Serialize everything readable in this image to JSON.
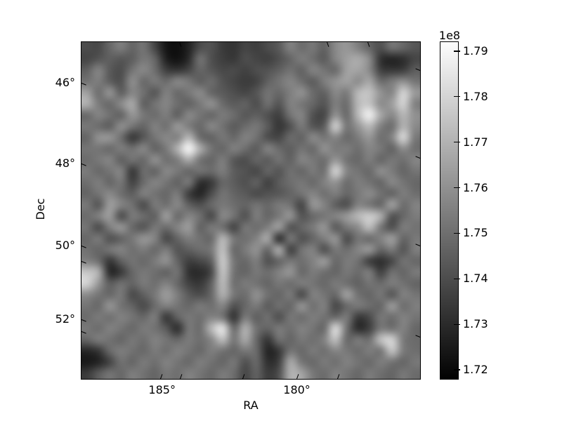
{
  "figure": {
    "background_color": "#ffffff",
    "frame_color": "#000000"
  },
  "chart_data": {
    "type": "heatmap",
    "title": "",
    "xlabel": "RA",
    "ylabel": "Dec",
    "colormap": "gray",
    "grid_on": false,
    "x_axis": {
      "name": "RA",
      "unit": "deg",
      "range": [
        188.0,
        175.5
      ],
      "tick_values": [
        185,
        180
      ],
      "tick_labels": [
        "185°",
        "180°"
      ]
    },
    "y_axis": {
      "name": "Dec",
      "unit": "deg",
      "range": [
        45.0,
        53.5
      ],
      "tick_values": [
        46,
        48,
        50,
        52
      ],
      "tick_labels": [
        "46°",
        "48°",
        "50°",
        "52°"
      ]
    },
    "colorbar": {
      "offset_label": "1e8",
      "unit_multiplier": 100000000,
      "vmin_1e8": 1.718,
      "vmax_1e8": 1.792,
      "tick_values_1e8": [
        1.79,
        1.78,
        1.77,
        1.76,
        1.75,
        1.74,
        1.73,
        1.72
      ],
      "tick_labels": [
        "1.79",
        "1.78",
        "1.77",
        "1.76",
        "1.75",
        "1.74",
        "1.73",
        "1.72"
      ],
      "gradient_top_color": "#fdfdfd",
      "gradient_bottom_color": "#020202"
    },
    "grid_shape": [
      30,
      30
    ],
    "values_1e8": [
      [
        1.74,
        1.739,
        1.748,
        1.755,
        1.747,
        1.752,
        1.738,
        1.724,
        1.722,
        1.728,
        1.74,
        1.742,
        1.735,
        1.733,
        1.738,
        1.736,
        1.74,
        1.744,
        1.756,
        1.749,
        1.753,
        1.746,
        1.758,
        1.762,
        1.755,
        1.747,
        1.741,
        1.752,
        1.748,
        1.743
      ],
      [
        1.738,
        1.742,
        1.746,
        1.743,
        1.745,
        1.753,
        1.748,
        1.727,
        1.723,
        1.73,
        1.752,
        1.741,
        1.736,
        1.734,
        1.741,
        1.738,
        1.736,
        1.741,
        1.747,
        1.755,
        1.75,
        1.744,
        1.757,
        1.764,
        1.768,
        1.759,
        1.732,
        1.728,
        1.731,
        1.738
      ],
      [
        1.746,
        1.757,
        1.744,
        1.74,
        1.752,
        1.758,
        1.75,
        1.736,
        1.733,
        1.738,
        1.748,
        1.743,
        1.739,
        1.74,
        1.737,
        1.741,
        1.742,
        1.746,
        1.751,
        1.746,
        1.757,
        1.752,
        1.748,
        1.765,
        1.766,
        1.758,
        1.736,
        1.734,
        1.735,
        1.745
      ],
      [
        1.751,
        1.755,
        1.745,
        1.741,
        1.76,
        1.748,
        1.754,
        1.749,
        1.758,
        1.753,
        1.745,
        1.75,
        1.742,
        1.738,
        1.735,
        1.737,
        1.746,
        1.752,
        1.757,
        1.75,
        1.744,
        1.755,
        1.761,
        1.765,
        1.758,
        1.767,
        1.749,
        1.754,
        1.76,
        1.752
      ],
      [
        1.765,
        1.749,
        1.762,
        1.745,
        1.757,
        1.751,
        1.742,
        1.756,
        1.748,
        1.753,
        1.759,
        1.747,
        1.744,
        1.741,
        1.738,
        1.743,
        1.752,
        1.748,
        1.755,
        1.761,
        1.749,
        1.746,
        1.758,
        1.753,
        1.772,
        1.775,
        1.761,
        1.756,
        1.78,
        1.763
      ],
      [
        1.77,
        1.754,
        1.748,
        1.759,
        1.768,
        1.745,
        1.752,
        1.757,
        1.75,
        1.746,
        1.753,
        1.761,
        1.749,
        1.744,
        1.747,
        1.74,
        1.751,
        1.742,
        1.756,
        1.752,
        1.748,
        1.742,
        1.755,
        1.749,
        1.772,
        1.775,
        1.758,
        1.764,
        1.78,
        1.755
      ],
      [
        1.748,
        1.757,
        1.751,
        1.746,
        1.762,
        1.753,
        1.749,
        1.755,
        1.745,
        1.758,
        1.752,
        1.747,
        1.754,
        1.75,
        1.743,
        1.746,
        1.741,
        1.736,
        1.752,
        1.757,
        1.741,
        1.738,
        1.761,
        1.748,
        1.772,
        1.789,
        1.767,
        1.757,
        1.771,
        1.76
      ],
      [
        1.753,
        1.749,
        1.745,
        1.76,
        1.752,
        1.747,
        1.756,
        1.75,
        1.763,
        1.754,
        1.748,
        1.758,
        1.751,
        1.744,
        1.749,
        1.753,
        1.745,
        1.733,
        1.741,
        1.754,
        1.742,
        1.744,
        1.78,
        1.752,
        1.761,
        1.772,
        1.755,
        1.749,
        1.77,
        1.758
      ],
      [
        1.747,
        1.761,
        1.762,
        1.75,
        1.733,
        1.743,
        1.752,
        1.758,
        1.755,
        1.772,
        1.749,
        1.746,
        1.753,
        1.748,
        1.756,
        1.751,
        1.74,
        1.738,
        1.75,
        1.746,
        1.759,
        1.752,
        1.757,
        1.748,
        1.754,
        1.762,
        1.75,
        1.756,
        1.782,
        1.753
      ],
      [
        1.752,
        1.752,
        1.748,
        1.755,
        1.751,
        1.758,
        1.746,
        1.753,
        1.77,
        1.791,
        1.769,
        1.752,
        1.747,
        1.756,
        1.75,
        1.744,
        1.757,
        1.749,
        1.745,
        1.752,
        1.748,
        1.761,
        1.753,
        1.755,
        1.75,
        1.757,
        1.753,
        1.746,
        1.759,
        1.75
      ],
      [
        1.749,
        1.753,
        1.757,
        1.745,
        1.752,
        1.748,
        1.761,
        1.75,
        1.754,
        1.768,
        1.751,
        1.747,
        1.755,
        1.743,
        1.74,
        1.748,
        1.744,
        1.752,
        1.746,
        1.757,
        1.753,
        1.749,
        1.762,
        1.751,
        1.748,
        1.755,
        1.747,
        1.753,
        1.75,
        1.757
      ],
      [
        1.754,
        1.748,
        1.752,
        1.757,
        1.733,
        1.75,
        1.746,
        1.758,
        1.753,
        1.747,
        1.752,
        1.749,
        1.755,
        1.745,
        1.742,
        1.738,
        1.748,
        1.742,
        1.751,
        1.747,
        1.754,
        1.75,
        1.781,
        1.757,
        1.752,
        1.748,
        1.76,
        1.754,
        1.747,
        1.752
      ],
      [
        1.75,
        1.755,
        1.747,
        1.753,
        1.737,
        1.749,
        1.757,
        1.752,
        1.746,
        1.754,
        1.731,
        1.734,
        1.748,
        1.745,
        1.741,
        1.747,
        1.736,
        1.745,
        1.75,
        1.753,
        1.748,
        1.756,
        1.761,
        1.749,
        1.755,
        1.751,
        1.747,
        1.758,
        1.752,
        1.748
      ],
      [
        1.747,
        1.752,
        1.758,
        1.75,
        1.745,
        1.756,
        1.751,
        1.748,
        1.754,
        1.735,
        1.728,
        1.74,
        1.752,
        1.747,
        1.744,
        1.739,
        1.742,
        1.743,
        1.747,
        1.752,
        1.757,
        1.75,
        1.755,
        1.748,
        1.753,
        1.759,
        1.751,
        1.746,
        1.755,
        1.75
      ],
      [
        1.753,
        1.742,
        1.764,
        1.757,
        1.751,
        1.739,
        1.754,
        1.75,
        1.758,
        1.746,
        1.741,
        1.749,
        1.753,
        1.75,
        1.747,
        1.752,
        1.748,
        1.754,
        1.751,
        1.737,
        1.762,
        1.757,
        1.745,
        1.74,
        1.756,
        1.752,
        1.747,
        1.766,
        1.749,
        1.756
      ],
      [
        1.749,
        1.756,
        1.764,
        1.739,
        1.754,
        1.75,
        1.745,
        1.765,
        1.748,
        1.757,
        1.751,
        1.738,
        1.758,
        1.752,
        1.741,
        1.755,
        1.747,
        1.753,
        1.762,
        1.742,
        1.748,
        1.752,
        1.757,
        1.763,
        1.772,
        1.778,
        1.77,
        1.741,
        1.748,
        1.754
      ],
      [
        1.752,
        1.739,
        1.755,
        1.763,
        1.748,
        1.742,
        1.753,
        1.749,
        1.757,
        1.764,
        1.746,
        1.754,
        1.75,
        1.737,
        1.753,
        1.749,
        1.755,
        1.765,
        1.741,
        1.748,
        1.754,
        1.762,
        1.743,
        1.753,
        1.758,
        1.774,
        1.752,
        1.74,
        1.755,
        1.751
      ],
      [
        1.748,
        1.754,
        1.741,
        1.746,
        1.753,
        1.762,
        1.757,
        1.738,
        1.747,
        1.755,
        1.751,
        1.748,
        1.772,
        1.753,
        1.75,
        1.756,
        1.768,
        1.729,
        1.754,
        1.741,
        1.747,
        1.755,
        1.762,
        1.739,
        1.752,
        1.748,
        1.756,
        1.765,
        1.747,
        1.753
      ],
      [
        1.751,
        1.747,
        1.753,
        1.757,
        1.75,
        1.754,
        1.748,
        1.755,
        1.742,
        1.746,
        1.75,
        1.753,
        1.775,
        1.748,
        1.754,
        1.761,
        1.747,
        1.77,
        1.735,
        1.752,
        1.756,
        1.74,
        1.753,
        1.75,
        1.757,
        1.763,
        1.747,
        1.754,
        1.742,
        1.755
      ],
      [
        1.755,
        1.75,
        1.733,
        1.746,
        1.752,
        1.748,
        1.754,
        1.761,
        1.747,
        1.736,
        1.739,
        1.745,
        1.778,
        1.752,
        1.748,
        1.755,
        1.741,
        1.747,
        1.753,
        1.75,
        1.756,
        1.764,
        1.748,
        1.754,
        1.751,
        1.735,
        1.731,
        1.738,
        1.752,
        1.748
      ],
      [
        1.776,
        1.77,
        1.729,
        1.734,
        1.748,
        1.753,
        1.75,
        1.746,
        1.752,
        1.732,
        1.73,
        1.738,
        1.776,
        1.751,
        1.747,
        1.753,
        1.75,
        1.756,
        1.762,
        1.748,
        1.754,
        1.75,
        1.747,
        1.753,
        1.749,
        1.755,
        1.736,
        1.751,
        1.747,
        1.754
      ],
      [
        1.78,
        1.762,
        1.745,
        1.751,
        1.747,
        1.754,
        1.75,
        1.756,
        1.748,
        1.737,
        1.734,
        1.746,
        1.773,
        1.75,
        1.754,
        1.751,
        1.747,
        1.753,
        1.749,
        1.755,
        1.752,
        1.748,
        1.754,
        1.75,
        1.746,
        1.752,
        1.749,
        1.755,
        1.751,
        1.747
      ],
      [
        1.758,
        1.752,
        1.748,
        1.754,
        1.739,
        1.746,
        1.753,
        1.764,
        1.755,
        1.744,
        1.74,
        1.748,
        1.77,
        1.753,
        1.749,
        1.761,
        1.751,
        1.747,
        1.754,
        1.738,
        1.756,
        1.752,
        1.748,
        1.766,
        1.751,
        1.747,
        1.753,
        1.742,
        1.756,
        1.752
      ],
      [
        1.752,
        1.748,
        1.762,
        1.751,
        1.747,
        1.739,
        1.749,
        1.756,
        1.752,
        1.748,
        1.754,
        1.75,
        1.757,
        1.741,
        1.748,
        1.754,
        1.744,
        1.751,
        1.747,
        1.762,
        1.75,
        1.756,
        1.738,
        1.748,
        1.754,
        1.75,
        1.747,
        1.764,
        1.749,
        1.755
      ],
      [
        1.749,
        1.754,
        1.75,
        1.756,
        1.752,
        1.748,
        1.755,
        1.733,
        1.747,
        1.753,
        1.75,
        1.756,
        1.752,
        1.732,
        1.754,
        1.745,
        1.751,
        1.74,
        1.753,
        1.749,
        1.755,
        1.751,
        1.748,
        1.754,
        1.734,
        1.739,
        1.753,
        1.749,
        1.756,
        1.752
      ],
      [
        1.753,
        1.749,
        1.756,
        1.752,
        1.748,
        1.754,
        1.751,
        1.744,
        1.73,
        1.753,
        1.749,
        1.772,
        1.786,
        1.748,
        1.77,
        1.751,
        1.747,
        1.754,
        1.75,
        1.756,
        1.752,
        1.748,
        1.783,
        1.751,
        1.73,
        1.736,
        1.753,
        1.75,
        1.756,
        1.748
      ],
      [
        1.748,
        1.755,
        1.751,
        1.747,
        1.753,
        1.75,
        1.756,
        1.752,
        1.748,
        1.754,
        1.75,
        1.757,
        1.774,
        1.752,
        1.768,
        1.748,
        1.733,
        1.751,
        1.747,
        1.753,
        1.75,
        1.756,
        1.775,
        1.748,
        1.754,
        1.75,
        1.775,
        1.78,
        1.753,
        1.749
      ],
      [
        1.729,
        1.733,
        1.749,
        1.755,
        1.751,
        1.748,
        1.754,
        1.75,
        1.756,
        1.752,
        1.748,
        1.755,
        1.751,
        1.747,
        1.753,
        1.749,
        1.728,
        1.734,
        1.752,
        1.748,
        1.754,
        1.75,
        1.757,
        1.753,
        1.749,
        1.755,
        1.751,
        1.776,
        1.754,
        1.75
      ],
      [
        1.725,
        1.728,
        1.737,
        1.751,
        1.747,
        1.754,
        1.75,
        1.756,
        1.752,
        1.748,
        1.755,
        1.751,
        1.747,
        1.753,
        1.741,
        1.749,
        1.731,
        1.736,
        1.768,
        1.752,
        1.748,
        1.754,
        1.75,
        1.756,
        1.752,
        1.748,
        1.755,
        1.751,
        1.747,
        1.753
      ],
      [
        1.735,
        1.745,
        1.752,
        1.748,
        1.755,
        1.751,
        1.747,
        1.753,
        1.75,
        1.756,
        1.752,
        1.748,
        1.754,
        1.75,
        1.738,
        1.747,
        1.735,
        1.741,
        1.77,
        1.766,
        1.753,
        1.749,
        1.756,
        1.752,
        1.748,
        1.754,
        1.75,
        1.747,
        1.753,
        1.749
      ]
    ]
  }
}
